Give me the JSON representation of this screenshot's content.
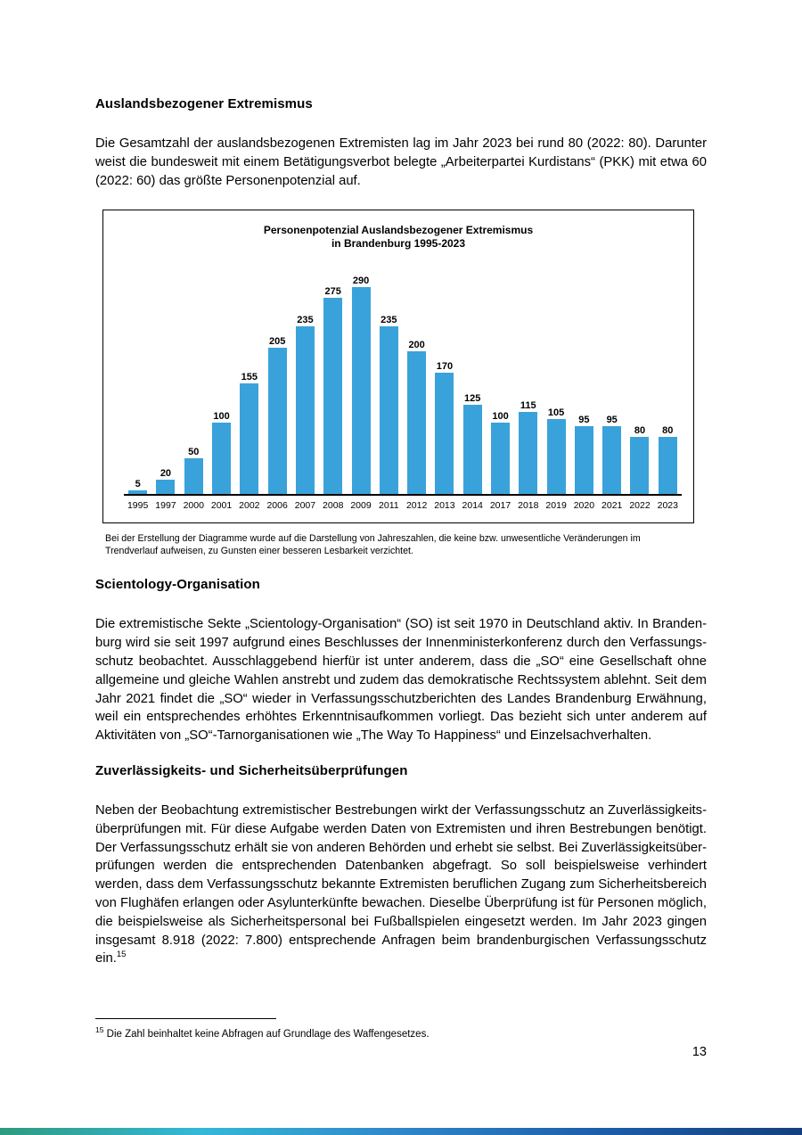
{
  "page": {
    "number": "13"
  },
  "sections": {
    "s1": {
      "heading": "Auslandsbezogener Extremismus",
      "paragraph": "Die Gesamtzahl der auslandsbezogenen Extremisten lag im Jahr 2023 bei rund 80 (2022: 80). Darunter weist die bundesweit mit einem Betätigungsverbot belegte „Arbeiterpartei Kurdistans“ (PKK) mit etwa 60 (2022: 60) das größte Personenpotenzial auf."
    },
    "chart_caption": "Bei der Erstellung der Diagramme wurde auf die Darstellung von Jahreszahlen, die keine bzw. unwesentliche Veränderungen im Trendverlauf aufweisen, zu Gunsten einer besseren Lesbarkeit verzichtet.",
    "s2": {
      "heading": "Scientology-Organisation",
      "paragraph": "Die extremistische Sekte „Scientology-Organisation“ (SO) ist seit 1970 in Deutschland aktiv. In Branden­burg wird sie seit 1997 aufgrund eines Beschlusses der Innenministerkonferenz durch den Verfassungs­schutz beobachtet. Ausschlaggebend hierfür ist unter anderem, dass die „SO“ eine Gesellschaft ohne allgemeine und gleiche Wahlen anstrebt und zudem das demokratische Rechtssystem ablehnt. Seit dem Jahr 2021 findet die „SO“ wieder in Verfassungsschutzberichten des Landes Brandenburg Erwähnung, weil ein entsprechendes erhöhtes Erkenntnisaufkommen vorliegt. Das bezieht sich unter anderem auf Aktivitäten von „SO“-Tarnorganisationen wie „The Way To Happiness“ und Einzelsachverhalten."
    },
    "s3": {
      "heading": "Zuverlässigkeits- und Sicherheitsüberprüfungen",
      "paragraph": "Neben der Beobachtung extremistischer Bestrebungen wirkt der Verfassungsschutz an Zuverlässigkeits­überprüfungen mit. Für diese Aufgabe werden Daten von Extremisten und ihren Bestrebungen benötigt. Der Verfassungsschutz erhält sie von anderen Behörden und erhebt sie selbst. Bei Zuverlässigkeitsüber­prüfungen werden die entsprechenden Datenbanken abgefragt. So soll beispielsweise verhindert werden, dass dem Verfassungsschutz bekannte Extremisten beruflichen Zugang zum Sicherheitsbereich von Flughäfen erlangen oder Asylunterkünfte bewachen. Dieselbe Überprüfung ist für Personen möglich, die beispielsweise als Sicherheitspersonal bei Fußballspielen eingesetzt werden. Im Jahr 2023 gingen ins­gesamt 8.918 (2022: 7.800) entsprechende Anfragen beim brandenburgischen Verfassungsschutz ein.",
      "footnote_ref": "15"
    }
  },
  "footnote": {
    "marker": "15",
    "text": " Die Zahl beinhaltet keine Abfragen auf Grundlage des Waffengesetzes."
  },
  "chart_data": {
    "type": "bar",
    "title": "Personenpotenzial Auslandsbezogener Extremismus in Brandenburg 1995-2023",
    "title_lines": [
      "Personenpotenzial Auslandsbezogener Extremismus",
      "in Brandenburg 1995-2023"
    ],
    "categories": [
      "1995",
      "1997",
      "2000",
      "2001",
      "2002",
      "2006",
      "2007",
      "2008",
      "2009",
      "2011",
      "2012",
      "2013",
      "2014",
      "2017",
      "2018",
      "2019",
      "2020",
      "2021",
      "2022",
      "2023"
    ],
    "values": [
      5,
      20,
      50,
      100,
      155,
      205,
      235,
      275,
      290,
      235,
      200,
      170,
      125,
      100,
      115,
      105,
      95,
      95,
      80,
      80
    ],
    "xlabel": "",
    "ylabel": "",
    "ylim": [
      0,
      300
    ],
    "grid": false,
    "legend": false,
    "bar_color": "#3aa2da",
    "axis_color": "#000000"
  },
  "footer_bar": {
    "colors": [
      "#2e9b7e",
      "#35b8d8",
      "#2f86c8",
      "#1b5ea8",
      "#143f7e"
    ]
  }
}
